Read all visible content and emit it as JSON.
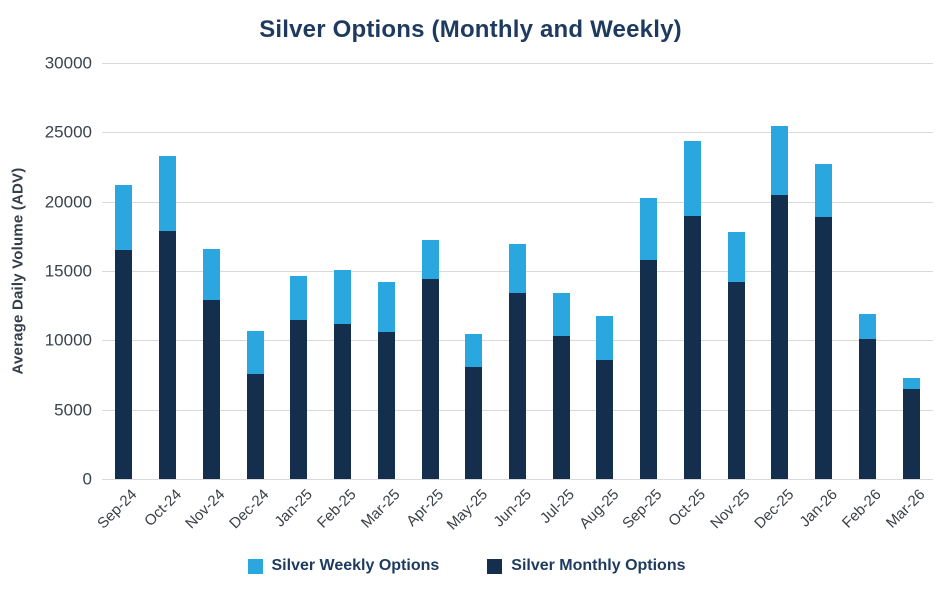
{
  "chart": {
    "title": "Silver Options (Monthly and Weekly)",
    "y_axis_title": "Average Daily Volume (ADV)"
  },
  "colors": {
    "weekly": "#2BA7E0",
    "monthly": "#142E4E",
    "title_text": "#1E3A5F",
    "axis_tick_text": "#3A434D",
    "gridline": "#D9D9D9"
  },
  "legend": [
    {
      "label": "Silver Weekly Options",
      "series": "weekly"
    },
    {
      "label": "Silver Monthly Options",
      "series": "monthly"
    }
  ],
  "chart_data": {
    "type": "bar",
    "stacked": true,
    "title": "Silver Options (Monthly and Weekly)",
    "xlabel": "",
    "ylabel": "Average Daily Volume (ADV)",
    "ylim": [
      0,
      30000
    ],
    "yticks": [
      0,
      5000,
      10000,
      15000,
      20000,
      25000,
      30000
    ],
    "grid": true,
    "legend_position": "bottom",
    "categories": [
      "Sep-24",
      "Oct-24",
      "Nov-24",
      "Dec-24",
      "Jan-25",
      "Feb-25",
      "Mar-25",
      "Apr-25",
      "May-25",
      "Jun-25",
      "Jul-25",
      "Aug-25",
      "Sep-25",
      "Oct-25",
      "Nov-25",
      "Dec-25",
      "Jan-26",
      "Feb-26",
      "Mar-26"
    ],
    "series": [
      {
        "name": "Silver Monthly Options",
        "key": "monthly",
        "color": "#142E4E",
        "values": [
          16500,
          17900,
          12900,
          7600,
          11500,
          11200,
          10600,
          14400,
          8100,
          13400,
          10300,
          8600,
          15800,
          19000,
          14200,
          20500,
          18900,
          10100,
          6500
        ]
      },
      {
        "name": "Silver Weekly Options",
        "key": "weekly",
        "color": "#2BA7E0",
        "values": [
          4700,
          5400,
          3700,
          3100,
          3200,
          3900,
          3600,
          2800,
          2400,
          3500,
          3100,
          3200,
          4500,
          5400,
          3600,
          5000,
          3800,
          1800,
          800
        ]
      }
    ]
  }
}
